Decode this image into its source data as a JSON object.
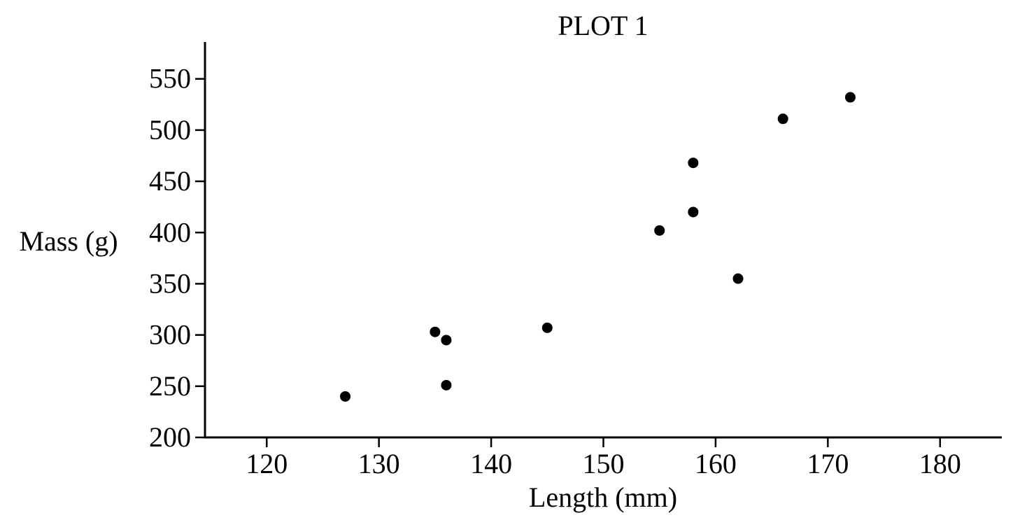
{
  "colors": {
    "background": "#ffffff",
    "ink": "#000000"
  },
  "chart_data": {
    "type": "scatter",
    "title": "PLOT 1",
    "xlabel": "Length (mm)",
    "ylabel": "Mass (g)",
    "xlim": [
      114.5,
      185.5
    ],
    "ylim": [
      200,
      586
    ],
    "xticks": [
      120,
      130,
      140,
      150,
      160,
      170,
      180
    ],
    "yticks": [
      200,
      250,
      300,
      350,
      400,
      450,
      500,
      550
    ],
    "xtick_labels": [
      "120",
      "130",
      "140",
      "150",
      "160",
      "170",
      "180"
    ],
    "ytick_labels": [
      "200",
      "250",
      "300",
      "350",
      "400",
      "450",
      "500",
      "550"
    ],
    "grid": false,
    "legend": "none",
    "points": [
      {
        "x": 127,
        "y": 240
      },
      {
        "x": 135,
        "y": 303
      },
      {
        "x": 136,
        "y": 295
      },
      {
        "x": 136,
        "y": 251
      },
      {
        "x": 145,
        "y": 307
      },
      {
        "x": 155,
        "y": 402
      },
      {
        "x": 158,
        "y": 468
      },
      {
        "x": 158,
        "y": 420
      },
      {
        "x": 162,
        "y": 355
      },
      {
        "x": 166,
        "y": 511
      },
      {
        "x": 172,
        "y": 532
      }
    ]
  }
}
